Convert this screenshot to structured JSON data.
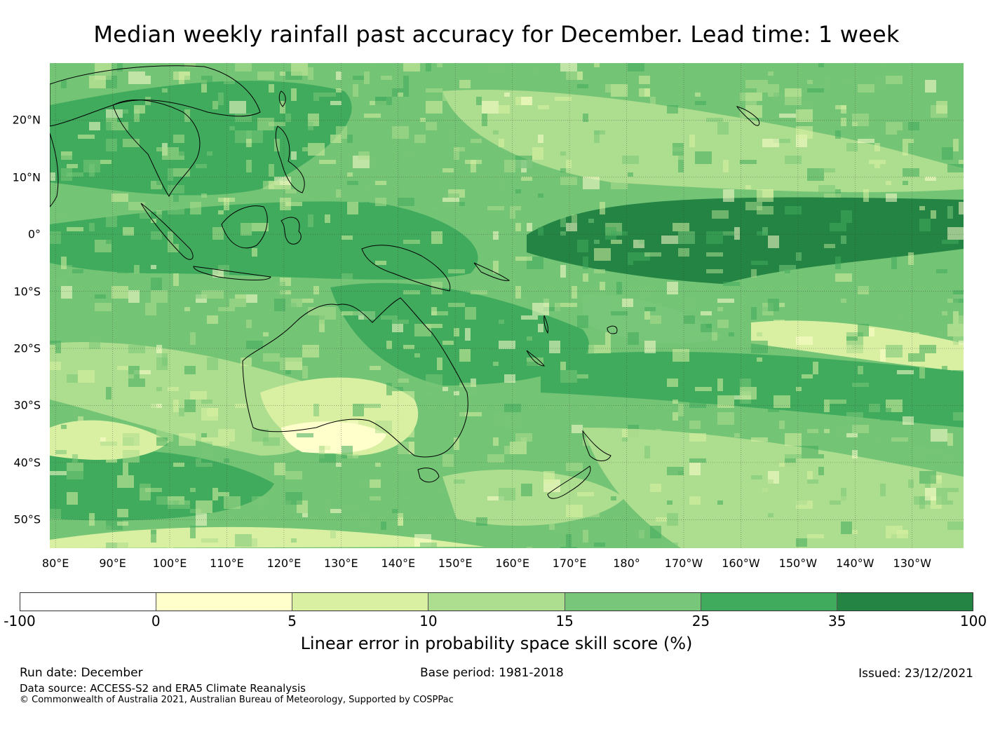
{
  "title": "Median weekly rainfall past accuracy for December. Lead time: 1 week",
  "map": {
    "region": "Indo-Pacific / Australia",
    "lat_labels": [
      "20°N",
      "10°N",
      "0°",
      "10°S",
      "20°S",
      "30°S",
      "40°S",
      "50°S"
    ],
    "lon_labels": [
      "80°E",
      "90°E",
      "100°E",
      "110°E",
      "120°E",
      "130°E",
      "140°E",
      "150°E",
      "160°E",
      "170°E",
      "180°",
      "170°W",
      "160°W",
      "150°W",
      "140°W",
      "130°W"
    ],
    "lat_range": [
      -55,
      30
    ],
    "lon_range": [
      79,
      239
    ]
  },
  "colorbar": {
    "ticks": [
      "-100",
      "0",
      "5",
      "10",
      "15",
      "25",
      "35",
      "100"
    ],
    "colors": [
      "#ffffff",
      "#ffffcc",
      "#d9f0a3",
      "#addd8e",
      "#78c679",
      "#41ab5d",
      "#238443"
    ],
    "label": "Linear error in probability space skill score (%)"
  },
  "footer": {
    "run_date": "Run date: December",
    "base_period": "Base period: 1981-2018",
    "issued": "Issued: 23/12/2021",
    "data_source": "Data source: ACCESS-S2 and ERA5 Climate Reanalysis",
    "copyright": "© Commonwealth of Australia 2021, Australian Bureau of Meteorology, Supported by COSPPac"
  }
}
